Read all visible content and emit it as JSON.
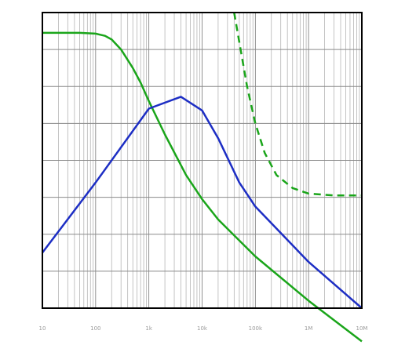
{
  "chart_data": {
    "type": "line",
    "title": "",
    "xlabel": "",
    "ylabel": "",
    "x_scale": "log",
    "xlim": [
      10,
      10000000
    ],
    "ylim": [
      0,
      8
    ],
    "grid": true,
    "legend": "none",
    "x_tick_labels": [
      "10",
      "100",
      "1k",
      "10k",
      "100k",
      "1M",
      "10M"
    ],
    "y_left_tick_labels": [
      "",
      "",
      "",
      "",
      "",
      "",
      "",
      "",
      ""
    ],
    "y_right_tick_labels": [
      "",
      "",
      "",
      "",
      "",
      "",
      "",
      "",
      ""
    ],
    "series": [
      {
        "color": "#1aa51a",
        "style": "solid",
        "x": [
          10,
          50,
          100,
          150,
          200,
          300,
          500,
          700,
          1000,
          2000,
          5000,
          10000,
          20000,
          100000,
          1000000,
          10000000
        ],
        "y": [
          7.45,
          7.45,
          7.43,
          7.37,
          7.27,
          7.0,
          6.5,
          6.1,
          5.6,
          4.7,
          3.6,
          2.95,
          2.4,
          1.4,
          0.2,
          -0.9
        ]
      },
      {
        "color": "#1aa51a",
        "style": "dashed",
        "x": [
          40000,
          50000,
          70000,
          100000,
          150000,
          250000,
          500000,
          1000000,
          3000000,
          10000000
        ],
        "y": [
          8.0,
          7.2,
          6.0,
          5.0,
          4.2,
          3.6,
          3.25,
          3.1,
          3.05,
          3.05
        ]
      },
      {
        "color": "#1d2ec4",
        "style": "solid",
        "x": [
          10,
          100,
          1000,
          4000,
          10000,
          20000,
          50000,
          100000,
          1000000,
          10000000
        ],
        "y": [
          1.5,
          3.4,
          5.4,
          5.72,
          5.35,
          4.6,
          3.4,
          2.75,
          1.25,
          0.0
        ]
      }
    ]
  }
}
